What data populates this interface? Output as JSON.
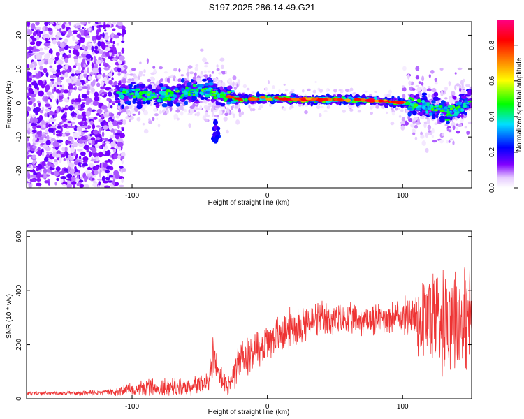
{
  "page_title": "S197.2025.286.14.49.G21",
  "chart_data": [
    {
      "type": "heatmap",
      "title": "S197.2025.286.14.49.G21",
      "xlabel": "Height of straight line (km)",
      "ylabel": "Frequency (Hz)",
      "xlim": [
        -178,
        151
      ],
      "ylim": [
        -25,
        24
      ],
      "xticks": [
        -100,
        0,
        100
      ],
      "yticks": [
        -20,
        -10,
        0,
        10,
        20
      ],
      "colorbar": {
        "label": "Normalized spectral amplitude",
        "range": [
          0,
          0.94
        ],
        "ticks": [
          "0.0",
          "0.2",
          "0.4",
          "0.6",
          "0.8"
        ],
        "tick_values": [
          0.0,
          0.2,
          0.4,
          0.6,
          0.8
        ],
        "colors": [
          "#ffffff",
          "#e6ccff",
          "#8000ff",
          "#0000ff",
          "#00e0ff",
          "#00ff00",
          "#ffff00",
          "#ff8000",
          "#ff0000",
          "#ff0080"
        ]
      },
      "ridge": [
        {
          "x": -110,
          "f": 3
        },
        {
          "x": -80,
          "f": 2
        },
        {
          "x": -45,
          "f": 4
        },
        {
          "x": -30,
          "f": 2
        },
        {
          "x": -20,
          "f": 1
        },
        {
          "x": 0,
          "f": 1.5
        },
        {
          "x": 25,
          "f": 1
        },
        {
          "x": 50,
          "f": 1
        },
        {
          "x": 80,
          "f": 0.8
        },
        {
          "x": 100,
          "f": 0
        },
        {
          "x": 120,
          "f": -1
        },
        {
          "x": 135,
          "f": -3
        },
        {
          "x": 151,
          "f": 1
        }
      ]
    },
    {
      "type": "line",
      "xlabel": "Height of straight line (km)",
      "ylabel": "SNR (10 * v/v)",
      "xlim": [
        -178,
        151
      ],
      "ylim": [
        0,
        620
      ],
      "xticks": [
        -100,
        0,
        100
      ],
      "yticks": [
        0,
        200,
        400,
        600
      ],
      "color": "#ee3333",
      "series": [
        {
          "name": "SNR",
          "x": [
            -178,
            -150,
            -120,
            -100,
            -80,
            -60,
            -45,
            -40,
            -35,
            -30,
            -20,
            0,
            20,
            40,
            60,
            80,
            100,
            108,
            112,
            130,
            151
          ],
          "mean": [
            20,
            20,
            22,
            35,
            45,
            45,
            55,
            150,
            80,
            40,
            150,
            210,
            270,
            290,
            290,
            295,
            300,
            310,
            300,
            320,
            300
          ],
          "spread": [
            10,
            10,
            12,
            30,
            40,
            40,
            45,
            90,
            60,
            50,
            90,
            90,
            90,
            80,
            70,
            70,
            75,
            120,
            200,
            260,
            230
          ]
        }
      ]
    }
  ]
}
